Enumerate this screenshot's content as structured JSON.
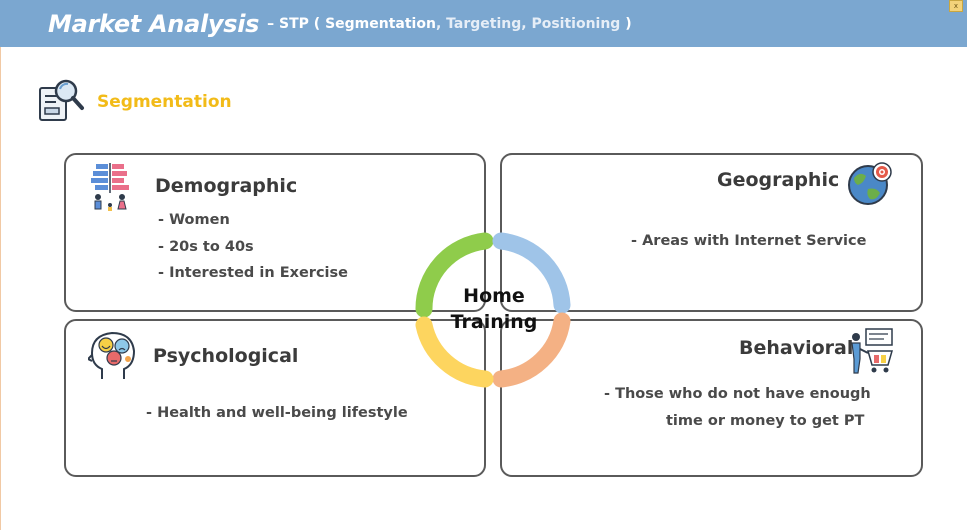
{
  "header": {
    "title": "Market Analysis",
    "prefix": "– STP ( ",
    "segmentation": "Segmentation",
    "sep1": ", ",
    "targeting": "Targeting",
    "sep2": ", ",
    "positioning": "Positioning",
    "suffix": " )",
    "close": "x"
  },
  "section": {
    "label": "Segmentation",
    "icon": "document-search-icon"
  },
  "center": {
    "line1": "Home",
    "line2": "Training"
  },
  "ring_colors": {
    "green": "#8fcc4b",
    "blue": "#9fc4e8",
    "yellow": "#fdd55f",
    "orange": "#f4b184"
  },
  "cards": {
    "demographic": {
      "title": "Demographic",
      "icon": "population-chart-icon",
      "items": [
        "- Women",
        "- 20s to 40s",
        "- Interested in Exercise"
      ]
    },
    "geographic": {
      "title": "Geographic",
      "icon": "globe-target-icon",
      "items": [
        "- Areas with Internet Service"
      ]
    },
    "psychological": {
      "title": "Psychological",
      "icon": "head-emotions-icon",
      "items": [
        "- Health and well-being lifestyle"
      ]
    },
    "behavioral": {
      "title": "Behavioral",
      "icon": "shopper-cart-icon",
      "items": [
        "- Those who do not have enough",
        "time or money to get PT"
      ]
    }
  }
}
